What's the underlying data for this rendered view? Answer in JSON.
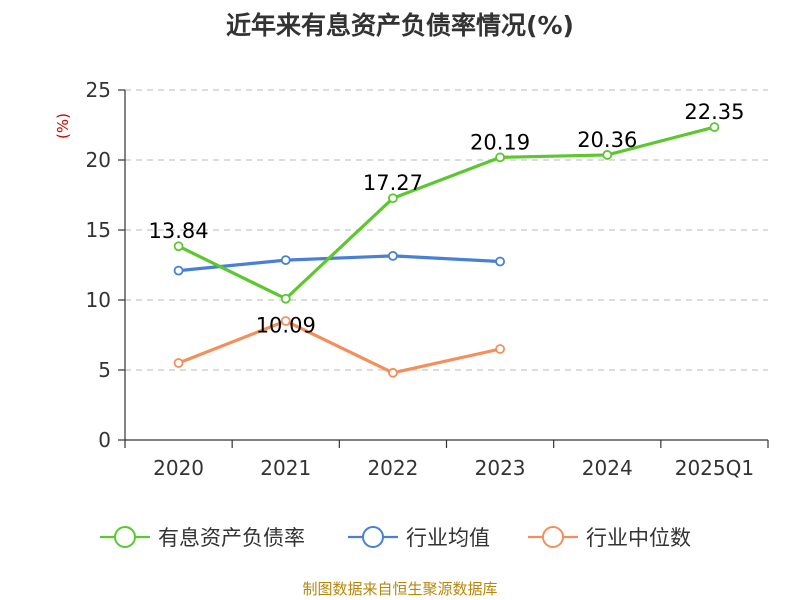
{
  "chart_data": {
    "type": "line",
    "title": "近年来有息资产负债率情况(%)",
    "ylabel": "(%)",
    "categories": [
      "2020",
      "2021",
      "2022",
      "2023",
      "2024",
      "2025Q1"
    ],
    "ylim": [
      0,
      25
    ],
    "yticks": [
      0,
      5,
      10,
      15,
      20,
      25
    ],
    "grid": true,
    "legend_position": "bottom",
    "series": [
      {
        "name": "有息资产负债率",
        "color": "#5cc72e",
        "values": [
          13.84,
          10.09,
          17.27,
          20.19,
          20.36,
          22.35
        ],
        "labels": [
          "13.84",
          "10.09",
          "17.27",
          "20.19",
          "20.36",
          "22.35"
        ]
      },
      {
        "name": "行业均值",
        "color": "#4a7fd8",
        "values": [
          12.1,
          12.85,
          13.15,
          12.75,
          null,
          null
        ]
      },
      {
        "name": "行业中位数",
        "color": "#f58f5a",
        "values": [
          5.5,
          8.5,
          4.8,
          6.5,
          null,
          null
        ]
      }
    ],
    "source": "制图数据来自恒生聚源数据库"
  }
}
